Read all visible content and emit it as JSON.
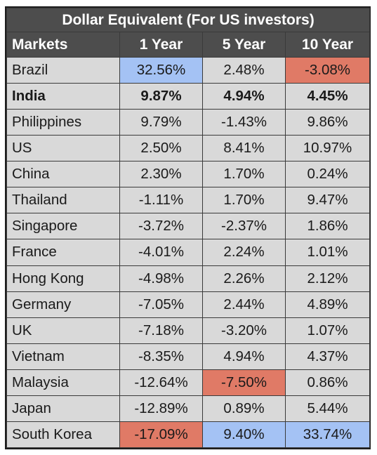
{
  "title": "Dollar Equivalent (For US investors)",
  "headers": [
    "Markets",
    "1 Year",
    "5 Year",
    "10 Year"
  ],
  "colors": {
    "header_bg": "#4d4d4d",
    "cell_bg": "#d9d9d9",
    "highlight_best": "#a4c2f4",
    "highlight_worst": "#e07a66"
  },
  "rows": [
    {
      "market": "Brazil",
      "y1": "32.56%",
      "y5": "2.48%",
      "y10": "-3.08%",
      "bold": false,
      "hl": {
        "y1": "blue",
        "y10": "red"
      }
    },
    {
      "market": "India",
      "y1": "9.87%",
      "y5": "4.94%",
      "y10": "4.45%",
      "bold": true,
      "hl": {}
    },
    {
      "market": "Philippines",
      "y1": "9.79%",
      "y5": "-1.43%",
      "y10": "9.86%",
      "bold": false,
      "hl": {}
    },
    {
      "market": "US",
      "y1": "2.50%",
      "y5": "8.41%",
      "y10": "10.97%",
      "bold": false,
      "hl": {}
    },
    {
      "market": "China",
      "y1": "2.30%",
      "y5": "1.70%",
      "y10": "0.24%",
      "bold": false,
      "hl": {}
    },
    {
      "market": "Thailand",
      "y1": "-1.11%",
      "y5": "1.70%",
      "y10": "9.47%",
      "bold": false,
      "hl": {}
    },
    {
      "market": "Singapore",
      "y1": "-3.72%",
      "y5": "-2.37%",
      "y10": "1.86%",
      "bold": false,
      "hl": {}
    },
    {
      "market": "France",
      "y1": "-4.01%",
      "y5": "2.24%",
      "y10": "1.01%",
      "bold": false,
      "hl": {}
    },
    {
      "market": "Hong Kong",
      "y1": "-4.98%",
      "y5": "2.26%",
      "y10": "2.12%",
      "bold": false,
      "hl": {}
    },
    {
      "market": "Germany",
      "y1": "-7.05%",
      "y5": "2.44%",
      "y10": "4.89%",
      "bold": false,
      "hl": {}
    },
    {
      "market": "UK",
      "y1": "-7.18%",
      "y5": "-3.20%",
      "y10": "1.07%",
      "bold": false,
      "hl": {}
    },
    {
      "market": "Vietnam",
      "y1": "-8.35%",
      "y5": "4.94%",
      "y10": "4.37%",
      "bold": false,
      "hl": {}
    },
    {
      "market": "Malaysia",
      "y1": "-12.64%",
      "y5": "-7.50%",
      "y10": "0.86%",
      "bold": false,
      "hl": {
        "y5": "red"
      }
    },
    {
      "market": "Japan",
      "y1": "-12.89%",
      "y5": "0.89%",
      "y10": "5.44%",
      "bold": false,
      "hl": {}
    },
    {
      "market": "South Korea",
      "y1": "-17.09%",
      "y5": "9.40%",
      "y10": "33.74%",
      "bold": false,
      "hl": {
        "y1": "red",
        "y5": "blue",
        "y10": "blue"
      }
    }
  ]
}
